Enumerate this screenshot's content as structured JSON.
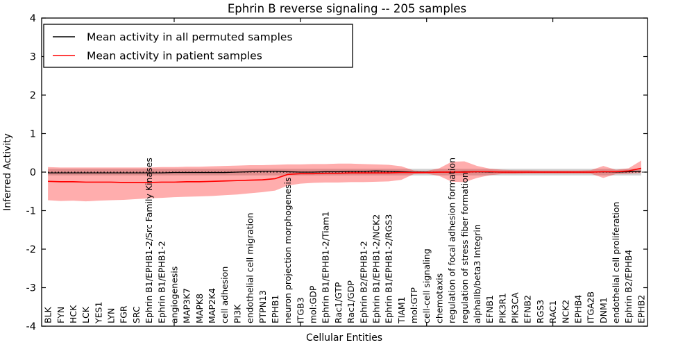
{
  "figure": {
    "title": "Ephrin B reverse signaling -- 205 samples",
    "xlabel": "Cellular Entities",
    "ylabel": "Inferred Activity",
    "legend": {
      "entries": [
        {
          "label": "Mean activity in all permuted samples",
          "color": "#000000"
        },
        {
          "label": "Mean activity in patient samples",
          "color": "#ff0000"
        }
      ]
    }
  },
  "chart_data": {
    "type": "line",
    "title": "Ephrin B reverse signaling -- 205 samples",
    "xlabel": "Cellular Entities",
    "ylabel": "Inferred Activity",
    "ylim": [
      -4,
      4
    ],
    "yticks": [
      -4,
      -3,
      -2,
      -1,
      0,
      1,
      2,
      3,
      4
    ],
    "xtick_mark_indices": [
      10,
      20,
      30,
      40
    ],
    "grid": false,
    "legend_position": "upper left",
    "zero_line": {
      "y": 0,
      "style": "dotted",
      "color": "#000000"
    },
    "colors": {
      "patient": "#ff0000",
      "permuted": "#000000",
      "patient_band": "#ff0000",
      "permuted_band": "#cccccc"
    },
    "categories": [
      "BLK",
      "FYN",
      "HCK",
      "LCK",
      "YES1",
      "LYN",
      "FGR",
      "SRC",
      "Ephrin B1/EPHB1-2/Src Family Kinases",
      "Ephrin B1/EPHB1-2",
      "angiogenesis",
      "MAP3K7",
      "MAPK8",
      "MAP2K4",
      "cell adhesion",
      "PI3K",
      "endothelial cell migration",
      "PTPN13",
      "EPHB1",
      "neuron projection morphogenesis",
      "ITGB3",
      "mol:GDP",
      "Ephrin B1/EPHB1-2/Tiam1",
      "Rac1/GTP",
      "Rac1/GDP",
      "Ephrin B2/EPHB1-2",
      "Ephrin B1/EPHB1-2/NCK2",
      "Ephrin B1/EPHB1-2/RGS3",
      "TIAM1",
      "mol:GTP",
      "cell-cell signaling",
      "chemotaxis",
      "regulation of focal adhesion formation",
      "regulation of stress fiber formation",
      "alphaIIb/beta3 Integrin",
      "EFNB1",
      "PIK3R1",
      "PIK3CA",
      "EFNB2",
      "RGS3",
      "RAC1",
      "NCK2",
      "EPHB4",
      "ITGA2B",
      "DNM1",
      "endothelial cell proliferation",
      "Ephrin B2/EPHB4",
      "EPHB2"
    ],
    "series": [
      {
        "name": "Mean activity in all permuted samples",
        "color": "#000000",
        "values": [
          -0.02,
          -0.02,
          -0.02,
          -0.02,
          -0.02,
          -0.02,
          -0.02,
          -0.02,
          -0.02,
          -0.02,
          -0.01,
          -0.01,
          -0.01,
          -0.01,
          -0.01,
          0,
          0.01,
          0.02,
          0.02,
          0.01,
          0,
          0,
          0.01,
          0.01,
          0.02,
          0.02,
          0.03,
          0.02,
          0.01,
          0,
          0,
          0,
          0,
          0.01,
          0.01,
          0,
          0,
          0,
          0,
          0,
          0,
          0,
          0,
          0,
          0.01,
          0,
          0.01,
          0.02
        ]
      },
      {
        "name": "Mean activity in patient samples",
        "color": "#ff0000",
        "values": [
          -0.24,
          -0.25,
          -0.25,
          -0.26,
          -0.26,
          -0.26,
          -0.27,
          -0.27,
          -0.27,
          -0.26,
          -0.26,
          -0.25,
          -0.25,
          -0.24,
          -0.23,
          -0.22,
          -0.21,
          -0.2,
          -0.17,
          -0.06,
          -0.04,
          -0.04,
          -0.03,
          -0.03,
          -0.02,
          -0.02,
          -0.02,
          -0.02,
          -0.01,
          -0.01,
          -0.01,
          0,
          0,
          0,
          0.01,
          0.01,
          0,
          0,
          0,
          0,
          0,
          0,
          0,
          0,
          0.01,
          0.01,
          0.03,
          0.1
        ]
      }
    ],
    "bands": [
      {
        "name": "permuted-range",
        "color": "#cccccc",
        "opacity": 0.9,
        "lower_uniform": -0.085,
        "upper_uniform": 0.085
      },
      {
        "name": "patient-range",
        "color": "#ff0000",
        "opacity": 0.32,
        "lower": [
          -0.73,
          -0.75,
          -0.74,
          -0.76,
          -0.74,
          -0.73,
          -0.72,
          -0.7,
          -0.68,
          -0.67,
          -0.65,
          -0.64,
          -0.63,
          -0.62,
          -0.6,
          -0.58,
          -0.55,
          -0.52,
          -0.48,
          -0.35,
          -0.3,
          -0.28,
          -0.27,
          -0.27,
          -0.26,
          -0.26,
          -0.25,
          -0.24,
          -0.2,
          -0.05,
          -0.04,
          -0.1,
          -0.25,
          -0.26,
          -0.15,
          -0.08,
          -0.05,
          -0.05,
          -0.04,
          -0.04,
          -0.04,
          -0.04,
          -0.04,
          -0.04,
          -0.15,
          -0.05,
          -0.04,
          -0.02
        ],
        "upper": [
          0.13,
          0.12,
          0.12,
          0.12,
          0.12,
          0.12,
          0.12,
          0.12,
          0.12,
          0.13,
          0.13,
          0.14,
          0.14,
          0.15,
          0.16,
          0.17,
          0.18,
          0.18,
          0.19,
          0.2,
          0.2,
          0.21,
          0.21,
          0.22,
          0.22,
          0.21,
          0.2,
          0.19,
          0.15,
          0.04,
          0.03,
          0.1,
          0.27,
          0.28,
          0.16,
          0.09,
          0.06,
          0.05,
          0.05,
          0.04,
          0.04,
          0.04,
          0.04,
          0.05,
          0.16,
          0.06,
          0.1,
          0.3
        ]
      }
    ]
  }
}
